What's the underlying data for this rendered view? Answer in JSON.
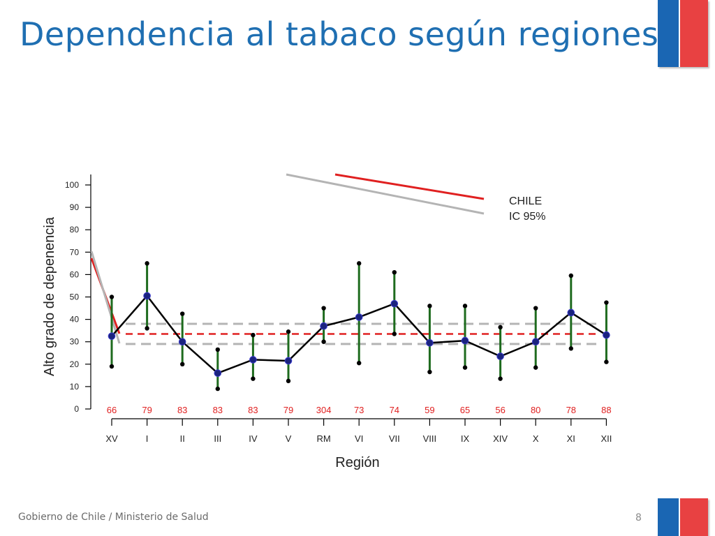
{
  "slide": {
    "title": "Dependencia al tabaco según regiones.",
    "footer": "Gobierno de Chile / Ministerio de Salud",
    "page_number": "8"
  },
  "colors": {
    "title": "#1f6fb2",
    "flag_blue": "#1a66b3",
    "flag_red": "#e84142",
    "line": "#000000",
    "marker": "#1a237e",
    "error_bar": "#1e6b1e",
    "chile_line": "#e02020",
    "ci_line": "#b4b4b4",
    "n_labels": "#e02020"
  },
  "chart_data": {
    "type": "line",
    "xlabel": "Región",
    "ylabel": "Alto grado de depenencia",
    "ylim": [
      0,
      100
    ],
    "yticks": [
      "0",
      "10",
      "20",
      "30",
      "40",
      "50",
      "60",
      "70",
      "80",
      "90",
      "100"
    ],
    "categories": [
      "XV",
      "I",
      "II",
      "III",
      "IV",
      "V",
      "RM",
      "VI",
      "VII",
      "VIII",
      "IX",
      "XIV",
      "X",
      "XI",
      "XII"
    ],
    "sample_sizes": [
      "66",
      "79",
      "83",
      "83",
      "83",
      "79",
      "304",
      "73",
      "74",
      "59",
      "65",
      "56",
      "80",
      "78",
      "88"
    ],
    "series": [
      {
        "values": [
          32.5,
          50.5,
          30,
          16,
          22,
          21.5,
          37,
          41,
          47,
          29.5,
          30.5,
          23.5,
          30,
          43,
          33
        ],
        "ci_lower": [
          19,
          36,
          20,
          9,
          13.5,
          12.5,
          30,
          20.5,
          33.5,
          16.5,
          18.5,
          13.5,
          18.5,
          27,
          21
        ],
        "ci_upper": [
          50,
          65,
          42.5,
          26.5,
          33,
          34.5,
          45,
          65,
          61,
          46,
          46,
          36.5,
          45,
          59.5,
          47.5
        ]
      }
    ],
    "reference": {
      "label": "CHILE",
      "value": 33.5,
      "ci_label": "IC 95%",
      "ci_lower": 29,
      "ci_upper": 38
    },
    "grid": false,
    "legend_position": "top-right"
  }
}
